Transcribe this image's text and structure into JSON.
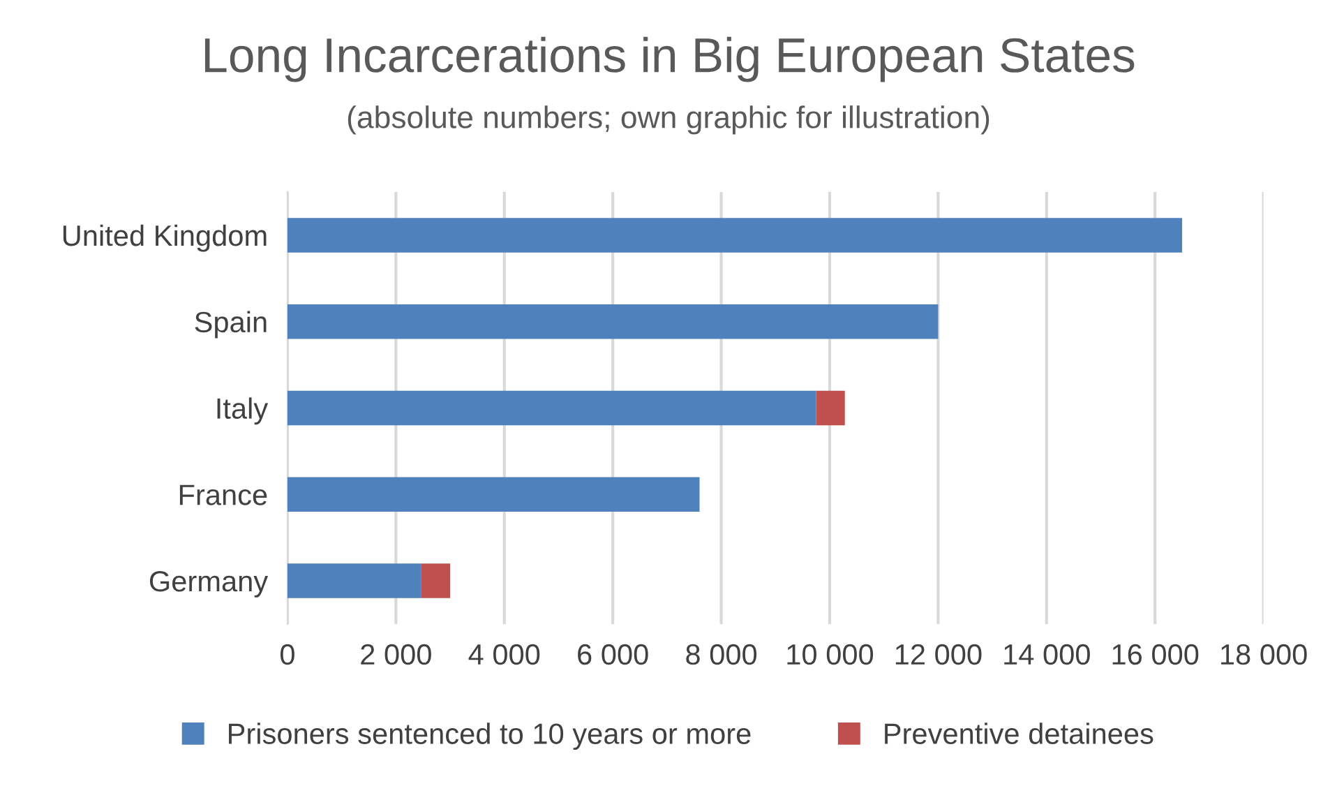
{
  "chart_data": {
    "type": "bar",
    "orientation": "horizontal",
    "stacked": true,
    "title": "Long Incarcerations in Big European States",
    "subtitle": "(absolute numbers; own graphic for illustration)",
    "categories": [
      "United Kingdom",
      "Spain",
      "Italy",
      "France",
      "Germany"
    ],
    "series": [
      {
        "name": "Prisoners sentenced to 10 years or more",
        "color": "#4f81bd",
        "values": [
          16500,
          12000,
          9750,
          7600,
          2470
        ]
      },
      {
        "name": "Preventive detainees",
        "color": "#c0504d",
        "values": [
          null,
          null,
          530,
          null,
          530
        ]
      }
    ],
    "xlim": [
      0,
      18000
    ],
    "xticks": [
      {
        "value": 0,
        "label": "0"
      },
      {
        "value": 2000,
        "label": "2 000"
      },
      {
        "value": 4000,
        "label": "4 000"
      },
      {
        "value": 6000,
        "label": "6 000"
      },
      {
        "value": 8000,
        "label": "8 000"
      },
      {
        "value": 10000,
        "label": "10 000"
      },
      {
        "value": 12000,
        "label": "12 000"
      },
      {
        "value": 14000,
        "label": "14 000"
      },
      {
        "value": 16000,
        "label": "16 000"
      },
      {
        "value": 18000,
        "label": "18 000"
      }
    ],
    "grid": "x",
    "legend": "bottom"
  }
}
